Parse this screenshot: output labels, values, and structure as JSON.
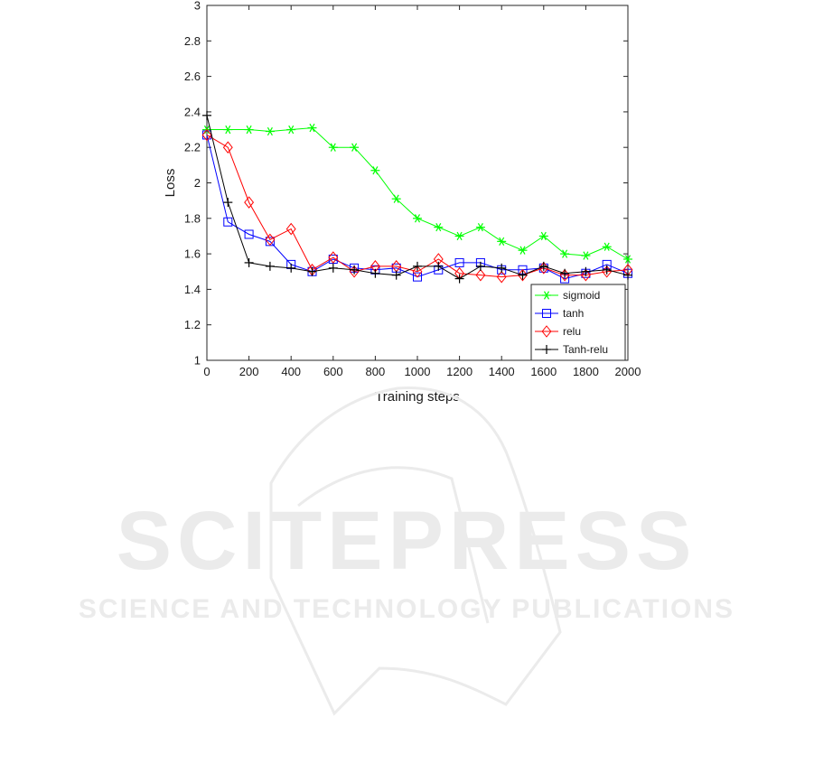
{
  "chart_data": {
    "type": "line",
    "title": "",
    "xlabel": "Training steps",
    "ylabel": "Loss",
    "xlim": [
      0,
      2000
    ],
    "ylim": [
      1,
      3
    ],
    "xticks": [
      "0",
      "200",
      "400",
      "600",
      "800",
      "1000",
      "1200",
      "1400",
      "1600",
      "1800",
      "2000"
    ],
    "yticks": [
      "1",
      "1.2",
      "1.4",
      "1.6",
      "1.8",
      "2",
      "2.2",
      "2.4",
      "2.6",
      "2.8",
      "3"
    ],
    "grid": false,
    "legend_position": "bottom-right",
    "x": [
      0,
      100,
      200,
      300,
      400,
      500,
      600,
      700,
      800,
      900,
      1000,
      1100,
      1200,
      1300,
      1400,
      1500,
      1600,
      1700,
      1800,
      1900,
      2000
    ],
    "series": [
      {
        "name": "sigmoid",
        "color": "#00ff00",
        "marker": "asterisk",
        "values": [
          2.3,
          2.3,
          2.3,
          2.29,
          2.3,
          2.31,
          2.2,
          2.2,
          2.07,
          1.91,
          1.8,
          1.75,
          1.7,
          1.75,
          1.67,
          1.62,
          1.7,
          1.6,
          1.59,
          1.64,
          1.57
        ]
      },
      {
        "name": "tanh",
        "color": "#0000ff",
        "marker": "square",
        "values": [
          2.27,
          1.78,
          1.71,
          1.67,
          1.54,
          1.5,
          1.57,
          1.52,
          1.51,
          1.52,
          1.47,
          1.51,
          1.55,
          1.55,
          1.51,
          1.51,
          1.52,
          1.46,
          1.49,
          1.54,
          1.49
        ]
      },
      {
        "name": "relu",
        "color": "#ff0000",
        "marker": "diamond",
        "values": [
          2.27,
          2.2,
          1.89,
          1.68,
          1.74,
          1.51,
          1.58,
          1.5,
          1.53,
          1.53,
          1.5,
          1.57,
          1.49,
          1.48,
          1.47,
          1.48,
          1.52,
          1.48,
          1.48,
          1.5,
          1.51
        ]
      },
      {
        "name": "Tanh-relu",
        "color": "#000000",
        "marker": "plus",
        "values": [
          2.38,
          1.89,
          1.55,
          1.53,
          1.52,
          1.5,
          1.52,
          1.51,
          1.49,
          1.48,
          1.53,
          1.53,
          1.46,
          1.53,
          1.52,
          1.48,
          1.53,
          1.49,
          1.5,
          1.51,
          1.48
        ]
      }
    ]
  },
  "watermark": {
    "title": "SCITEPRESS",
    "subtitle": "SCIENCE AND TECHNOLOGY PUBLICATIONS"
  }
}
